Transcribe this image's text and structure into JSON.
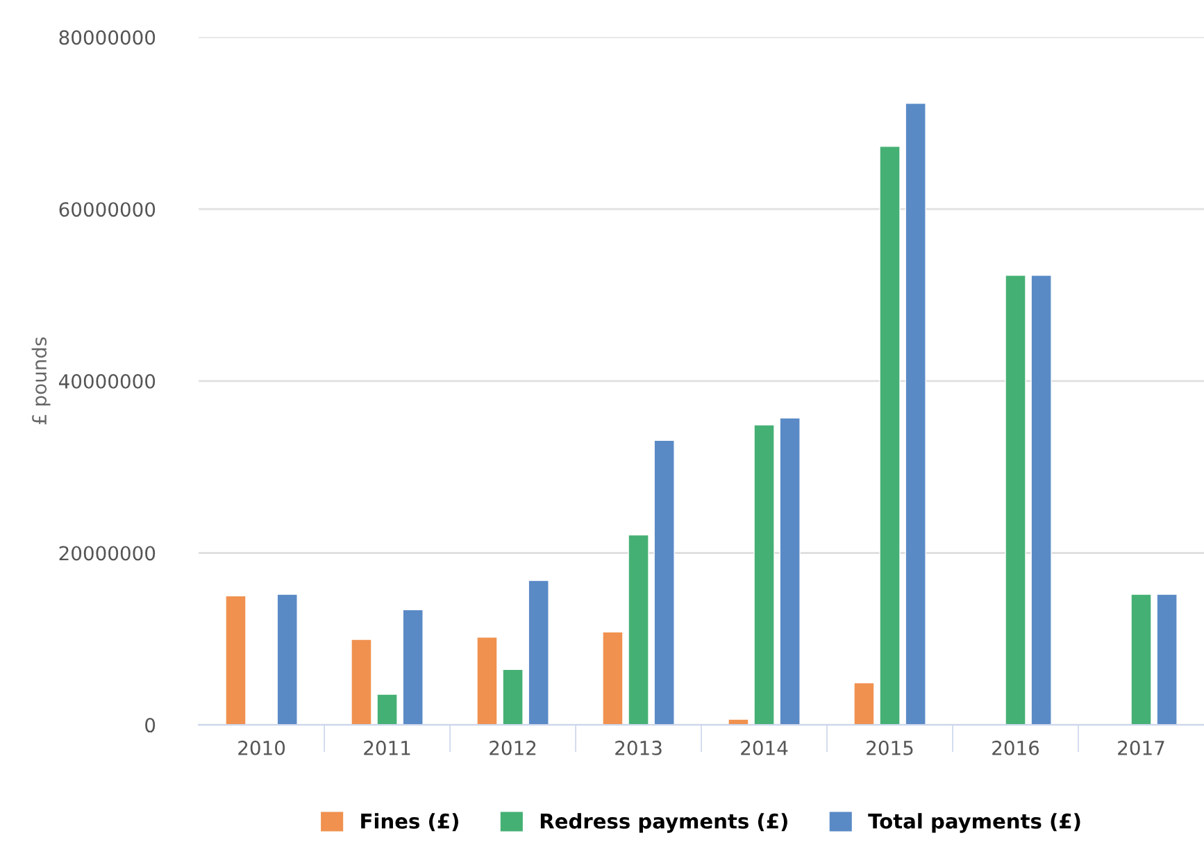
{
  "chart_data": {
    "type": "bar",
    "ylabel": "£ pounds",
    "categories": [
      "2010",
      "2011",
      "2012",
      "2013",
      "2014",
      "2015",
      "2016",
      "2017"
    ],
    "series": [
      {
        "name": "Fines (£)",
        "color": "#f0914f",
        "values": [
          15000000,
          9950000,
          10200000,
          10800000,
          660000,
          4900000,
          null,
          null
        ]
      },
      {
        "name": "Redress payments (£)",
        "color": "#45b074",
        "values": [
          null,
          3560000,
          6440000,
          22100000,
          34900000,
          67300000,
          52300000,
          15200000
        ]
      },
      {
        "name": "Total payments (£)",
        "color": "#5a8ac6",
        "values": [
          15200000,
          13400000,
          16800000,
          33100000,
          35700000,
          72300000,
          52300000,
          15200000
        ]
      }
    ],
    "ylim": [
      0,
      80000000
    ],
    "yticks": [
      0,
      20000000,
      40000000,
      60000000,
      80000000
    ],
    "grid": "y",
    "legend": "bottom"
  }
}
